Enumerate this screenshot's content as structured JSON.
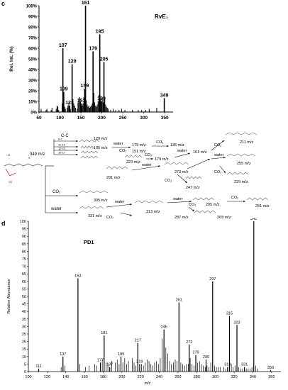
{
  "panels": {
    "c_label": "c",
    "d_label": "d"
  },
  "chart_data": [
    {
      "type": "bar",
      "title": "RvE₁",
      "ylabel": "Rel. Int. (%)",
      "xlabel": "",
      "xlim": [
        50,
        370
      ],
      "ylim": [
        0,
        100
      ],
      "xticks": [
        50,
        100,
        150,
        200,
        250,
        300,
        350
      ],
      "yticks": [
        "0%",
        "10%",
        "20%",
        "30%",
        "40%",
        "50%",
        "60%",
        "70%",
        "80%",
        "90%",
        "100%"
      ],
      "peaks": [
        {
          "mz": 107,
          "rel": 60,
          "label": "107"
        },
        {
          "mz": 109,
          "rel": 19,
          "label": "109"
        },
        {
          "mz": 123,
          "rel": 6,
          "label": "123"
        },
        {
          "mz": 129,
          "rel": 45,
          "label": "129"
        },
        {
          "mz": 151,
          "rel": 8,
          "label": "151"
        },
        {
          "mz": 159,
          "rel": 22,
          "label": "159"
        },
        {
          "mz": 161,
          "rel": 100,
          "label": "161"
        },
        {
          "mz": 179,
          "rel": 57,
          "label": "179"
        },
        {
          "mz": 195,
          "rel": 73,
          "label": "195"
        },
        {
          "mz": 199,
          "rel": 10,
          "label": "199"
        },
        {
          "mz": 205,
          "rel": 47,
          "label": "205"
        },
        {
          "mz": 349,
          "rel": 13,
          "label": "349"
        }
      ],
      "minor_peaks": [
        [
          55,
          3
        ],
        [
          67,
          2
        ],
        [
          69,
          3
        ],
        [
          79,
          2
        ],
        [
          81,
          4
        ],
        [
          91,
          3
        ],
        [
          93,
          6
        ],
        [
          95,
          5
        ],
        [
          97,
          2
        ],
        [
          105,
          8
        ],
        [
          111,
          5
        ],
        [
          113,
          3
        ],
        [
          117,
          4
        ],
        [
          119,
          6
        ],
        [
          121,
          9
        ],
        [
          125,
          3
        ],
        [
          131,
          12
        ],
        [
          133,
          8
        ],
        [
          135,
          6
        ],
        [
          137,
          4
        ],
        [
          141,
          3
        ],
        [
          143,
          9
        ],
        [
          145,
          12
        ],
        [
          147,
          14
        ],
        [
          149,
          10
        ],
        [
          153,
          6
        ],
        [
          155,
          8
        ],
        [
          157,
          14
        ],
        [
          163,
          11
        ],
        [
          165,
          7
        ],
        [
          167,
          5
        ],
        [
          169,
          6
        ],
        [
          171,
          4
        ],
        [
          173,
          5
        ],
        [
          175,
          6
        ],
        [
          177,
          8
        ],
        [
          181,
          18
        ],
        [
          183,
          9
        ],
        [
          185,
          6
        ],
        [
          187,
          5
        ],
        [
          189,
          7
        ],
        [
          191,
          10
        ],
        [
          193,
          16
        ],
        [
          197,
          12
        ],
        [
          201,
          14
        ],
        [
          203,
          9
        ],
        [
          207,
          12
        ],
        [
          209,
          7
        ],
        [
          211,
          5
        ],
        [
          213,
          4
        ],
        [
          215,
          3
        ],
        [
          221,
          2
        ],
        [
          227,
          3
        ],
        [
          233,
          2
        ],
        [
          241,
          2
        ],
        [
          247,
          3
        ],
        [
          255,
          2
        ],
        [
          273,
          2
        ],
        [
          287,
          2
        ],
        [
          295,
          2
        ],
        [
          305,
          2
        ],
        [
          313,
          3
        ],
        [
          331,
          4
        ]
      ]
    },
    {
      "type": "bar",
      "title": "PD1",
      "ylabel": "Relative Abundance",
      "xlabel": "m/z",
      "xlim": [
        100,
        370
      ],
      "ylim": [
        0,
        100
      ],
      "xticks": [
        100,
        120,
        140,
        160,
        180,
        200,
        220,
        240,
        260,
        280,
        300,
        320,
        340,
        360
      ],
      "yticks": [
        0,
        5,
        10,
        15,
        20,
        25,
        30,
        35,
        40,
        45,
        50,
        55,
        60,
        65,
        70,
        75,
        80,
        85,
        90,
        95,
        100
      ],
      "peaks": [
        {
          "mz": 111,
          "rel": 2,
          "label": "111"
        },
        {
          "mz": 137,
          "rel": 10,
          "label": "137"
        },
        {
          "mz": 153,
          "rel": 62,
          "label": "153"
        },
        {
          "mz": 177,
          "rel": 6,
          "label": "177"
        },
        {
          "mz": 181,
          "rel": 24,
          "label": "181"
        },
        {
          "mz": 187,
          "rel": 3,
          "label": "187"
        },
        {
          "mz": 199,
          "rel": 10,
          "label": "199"
        },
        {
          "mz": 217,
          "rel": 19,
          "label": "217"
        },
        {
          "mz": 219,
          "rel": 5,
          "label": "219"
        },
        {
          "mz": 245,
          "rel": 28,
          "label": "245"
        },
        {
          "mz": 261,
          "rel": 46,
          "label": "261"
        },
        {
          "mz": 272,
          "rel": 18,
          "label": "272"
        },
        {
          "mz": 279,
          "rel": 11,
          "label": "279"
        },
        {
          "mz": 290,
          "rel": 8,
          "label": "290"
        },
        {
          "mz": 297,
          "rel": 60,
          "label": "297"
        },
        {
          "mz": 313,
          "rel": 3,
          "label": "313"
        },
        {
          "mz": 315,
          "rel": 37,
          "label": "315"
        },
        {
          "mz": 323,
          "rel": 31,
          "label": "323"
        },
        {
          "mz": 331,
          "rel": 3,
          "label": "331"
        },
        {
          "mz": 341,
          "rel": 100,
          "label": "341"
        },
        {
          "mz": 359,
          "rel": 1,
          "label": "359"
        }
      ],
      "minor_peaks": [
        [
          135,
          3
        ],
        [
          139,
          4
        ],
        [
          155,
          5
        ],
        [
          161,
          3
        ],
        [
          165,
          4
        ],
        [
          171,
          5
        ],
        [
          173,
          4
        ],
        [
          179,
          8
        ],
        [
          183,
          6
        ],
        [
          185,
          5
        ],
        [
          189,
          7
        ],
        [
          193,
          6
        ],
        [
          195,
          8
        ],
        [
          197,
          5
        ],
        [
          201,
          6
        ],
        [
          203,
          9
        ],
        [
          205,
          5
        ],
        [
          207,
          7
        ],
        [
          211,
          9
        ],
        [
          213,
          6
        ],
        [
          215,
          4
        ],
        [
          221,
          5
        ],
        [
          223,
          4
        ],
        [
          225,
          6
        ],
        [
          227,
          8
        ],
        [
          229,
          7
        ],
        [
          231,
          5
        ],
        [
          233,
          4
        ],
        [
          235,
          6
        ],
        [
          237,
          7
        ],
        [
          239,
          5
        ],
        [
          241,
          9
        ],
        [
          243,
          22
        ],
        [
          247,
          16
        ],
        [
          249,
          12
        ],
        [
          251,
          7
        ],
        [
          253,
          5
        ],
        [
          255,
          6
        ],
        [
          257,
          8
        ],
        [
          259,
          7
        ],
        [
          263,
          6
        ],
        [
          265,
          5
        ],
        [
          267,
          4
        ],
        [
          269,
          5
        ],
        [
          271,
          5
        ],
        [
          273,
          9
        ],
        [
          275,
          5
        ],
        [
          277,
          4
        ],
        [
          281,
          6
        ],
        [
          283,
          7
        ],
        [
          285,
          5
        ],
        [
          287,
          4
        ],
        [
          289,
          3
        ],
        [
          291,
          4
        ],
        [
          293,
          3
        ],
        [
          295,
          6
        ],
        [
          299,
          4
        ],
        [
          301,
          3
        ],
        [
          303,
          3
        ],
        [
          305,
          3
        ],
        [
          309,
          3
        ],
        [
          311,
          2
        ],
        [
          317,
          5
        ],
        [
          319,
          3
        ],
        [
          321,
          4
        ],
        [
          325,
          3
        ],
        [
          327,
          2
        ],
        [
          329,
          2
        ],
        [
          333,
          2
        ],
        [
          335,
          2
        ],
        [
          337,
          2
        ],
        [
          339,
          3
        ],
        [
          343,
          4
        ],
        [
          345,
          2
        ]
      ]
    }
  ],
  "scheme": {
    "parent": "349 m/z",
    "cc_label": "C-C",
    "co2_label": "CO₂",
    "water_label": "water",
    "cleavages": [
      "6-7",
      "11-12",
      "12-13",
      "16-17"
    ],
    "atom_labels": [
      "11",
      "6",
      "16"
    ],
    "fragments": [
      "129 m/z",
      "195 m/z",
      "179 m/z",
      "151 m/z",
      "135 m/z",
      "161 m/z",
      "211 m/z",
      "223 m/z",
      "179 m/z",
      "255 m/z",
      "229 m/z",
      "273 m/z",
      "247 m/z",
      "291 m/z",
      "305 m/z",
      "313 m/z",
      "331 m/z",
      "287 m/z",
      "295 m/z",
      "251 m/z",
      "269 m/z"
    ],
    "edge_labels": [
      "water",
      "CO₂",
      "CO₂",
      "CO₂",
      "water",
      "CO₂",
      "water",
      "water",
      "CO₂",
      "CO₂",
      "CO₂",
      "water",
      "water",
      "CO₂",
      "CO₂",
      "CO₂",
      "water",
      "CO₂"
    ]
  }
}
